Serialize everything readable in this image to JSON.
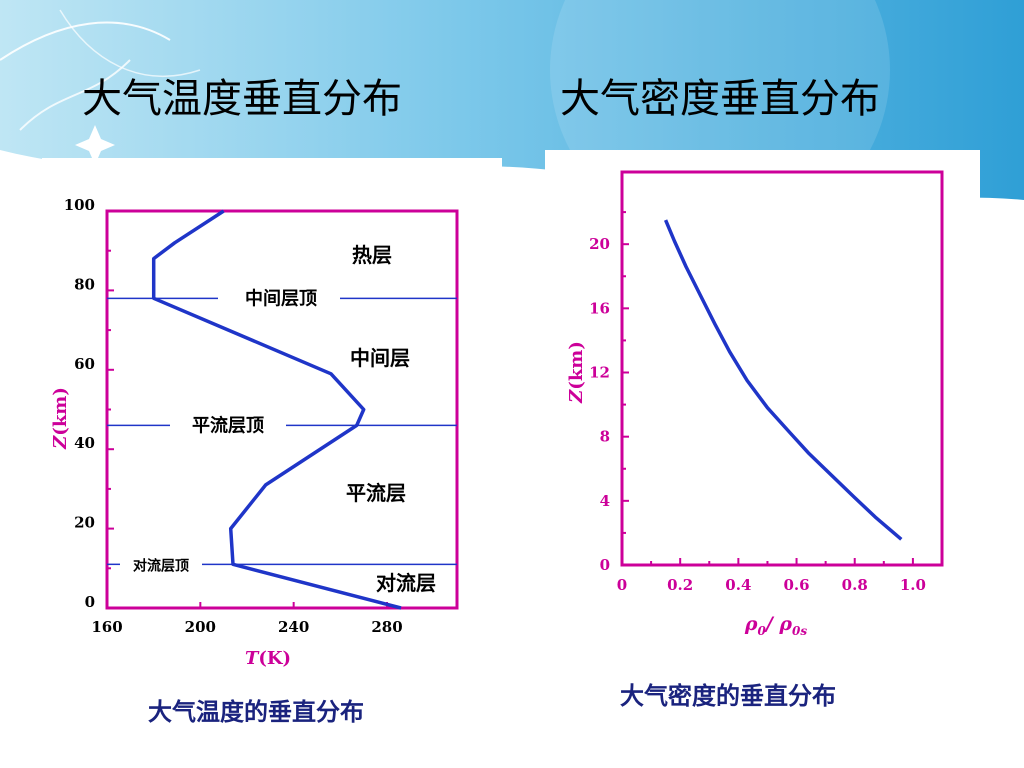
{
  "slide": {
    "title_left": "大气温度垂直分布",
    "title_right": "大气密度垂直分布",
    "caption_left": "大气温度的垂直分布",
    "caption_right": "大气密度的垂直分布"
  },
  "colors": {
    "axis": "#cc0099",
    "curve": "#1f35c8",
    "line": "#1f35c8",
    "banner": "#3aa6d8",
    "caption": "#1a237e"
  },
  "chart_data": [
    {
      "type": "line",
      "xlabel_italic": "T",
      "xlabel_rest": "(K)",
      "ylabel_italic": "Z",
      "ylabel_rest": "(km)",
      "xlim": [
        160,
        310
      ],
      "ylim": [
        0,
        100
      ],
      "xticks": [
        160,
        200,
        240,
        280
      ],
      "xtick_labels": [
        "160",
        "200",
        "240",
        "280"
      ],
      "yticks": [
        0,
        20,
        40,
        60,
        80,
        100
      ],
      "ytick_labels": [
        "0",
        "20",
        "40",
        "60",
        "80",
        "100"
      ],
      "series": [
        {
          "x": [
            286,
            214,
            213,
            228,
            267,
            270,
            256,
            180,
            180,
            189,
            210
          ],
          "y": [
            0,
            11,
            20,
            31,
            46,
            50,
            59,
            78,
            88,
            92,
            100
          ]
        }
      ],
      "reference_lines": [
        {
          "y": 78,
          "label": "中间层顶"
        },
        {
          "y": 46,
          "label": "平流层顶"
        },
        {
          "y": 11,
          "label": "对流层顶"
        }
      ],
      "annotations": [
        {
          "text": "热层"
        },
        {
          "text": "中间层"
        },
        {
          "text": "平流层"
        },
        {
          "text": "对流层"
        }
      ]
    },
    {
      "type": "line",
      "xlabel_a": "ρ",
      "xlabel_a_sub": "0",
      "xlabel_sep": "/ ",
      "xlabel_b": "ρ",
      "xlabel_b_sub": "0s",
      "ylabel_italic": "Z",
      "ylabel_rest": "(km)",
      "xlim": [
        0,
        1.1
      ],
      "ylim": [
        0,
        24.5
      ],
      "xticks": [
        0,
        0.2,
        0.4,
        0.6,
        0.8,
        1.0
      ],
      "xtick_labels": [
        "0",
        "0.2",
        "0.4",
        "0.6",
        "0.8",
        "1.0"
      ],
      "yticks": [
        0,
        4,
        8,
        12,
        16,
        20
      ],
      "ytick_labels": [
        "0",
        "4",
        "8",
        "12",
        "16",
        "20"
      ],
      "series": [
        {
          "x": [
            0.96,
            0.87,
            0.8,
            0.72,
            0.64,
            0.58,
            0.5,
            0.43,
            0.37,
            0.32,
            0.27,
            0.22,
            0.18,
            0.15
          ],
          "y": [
            1.6,
            3.0,
            4.2,
            5.6,
            7.0,
            8.2,
            9.8,
            11.5,
            13.3,
            15.0,
            16.8,
            18.6,
            20.2,
            21.5
          ]
        }
      ]
    }
  ]
}
